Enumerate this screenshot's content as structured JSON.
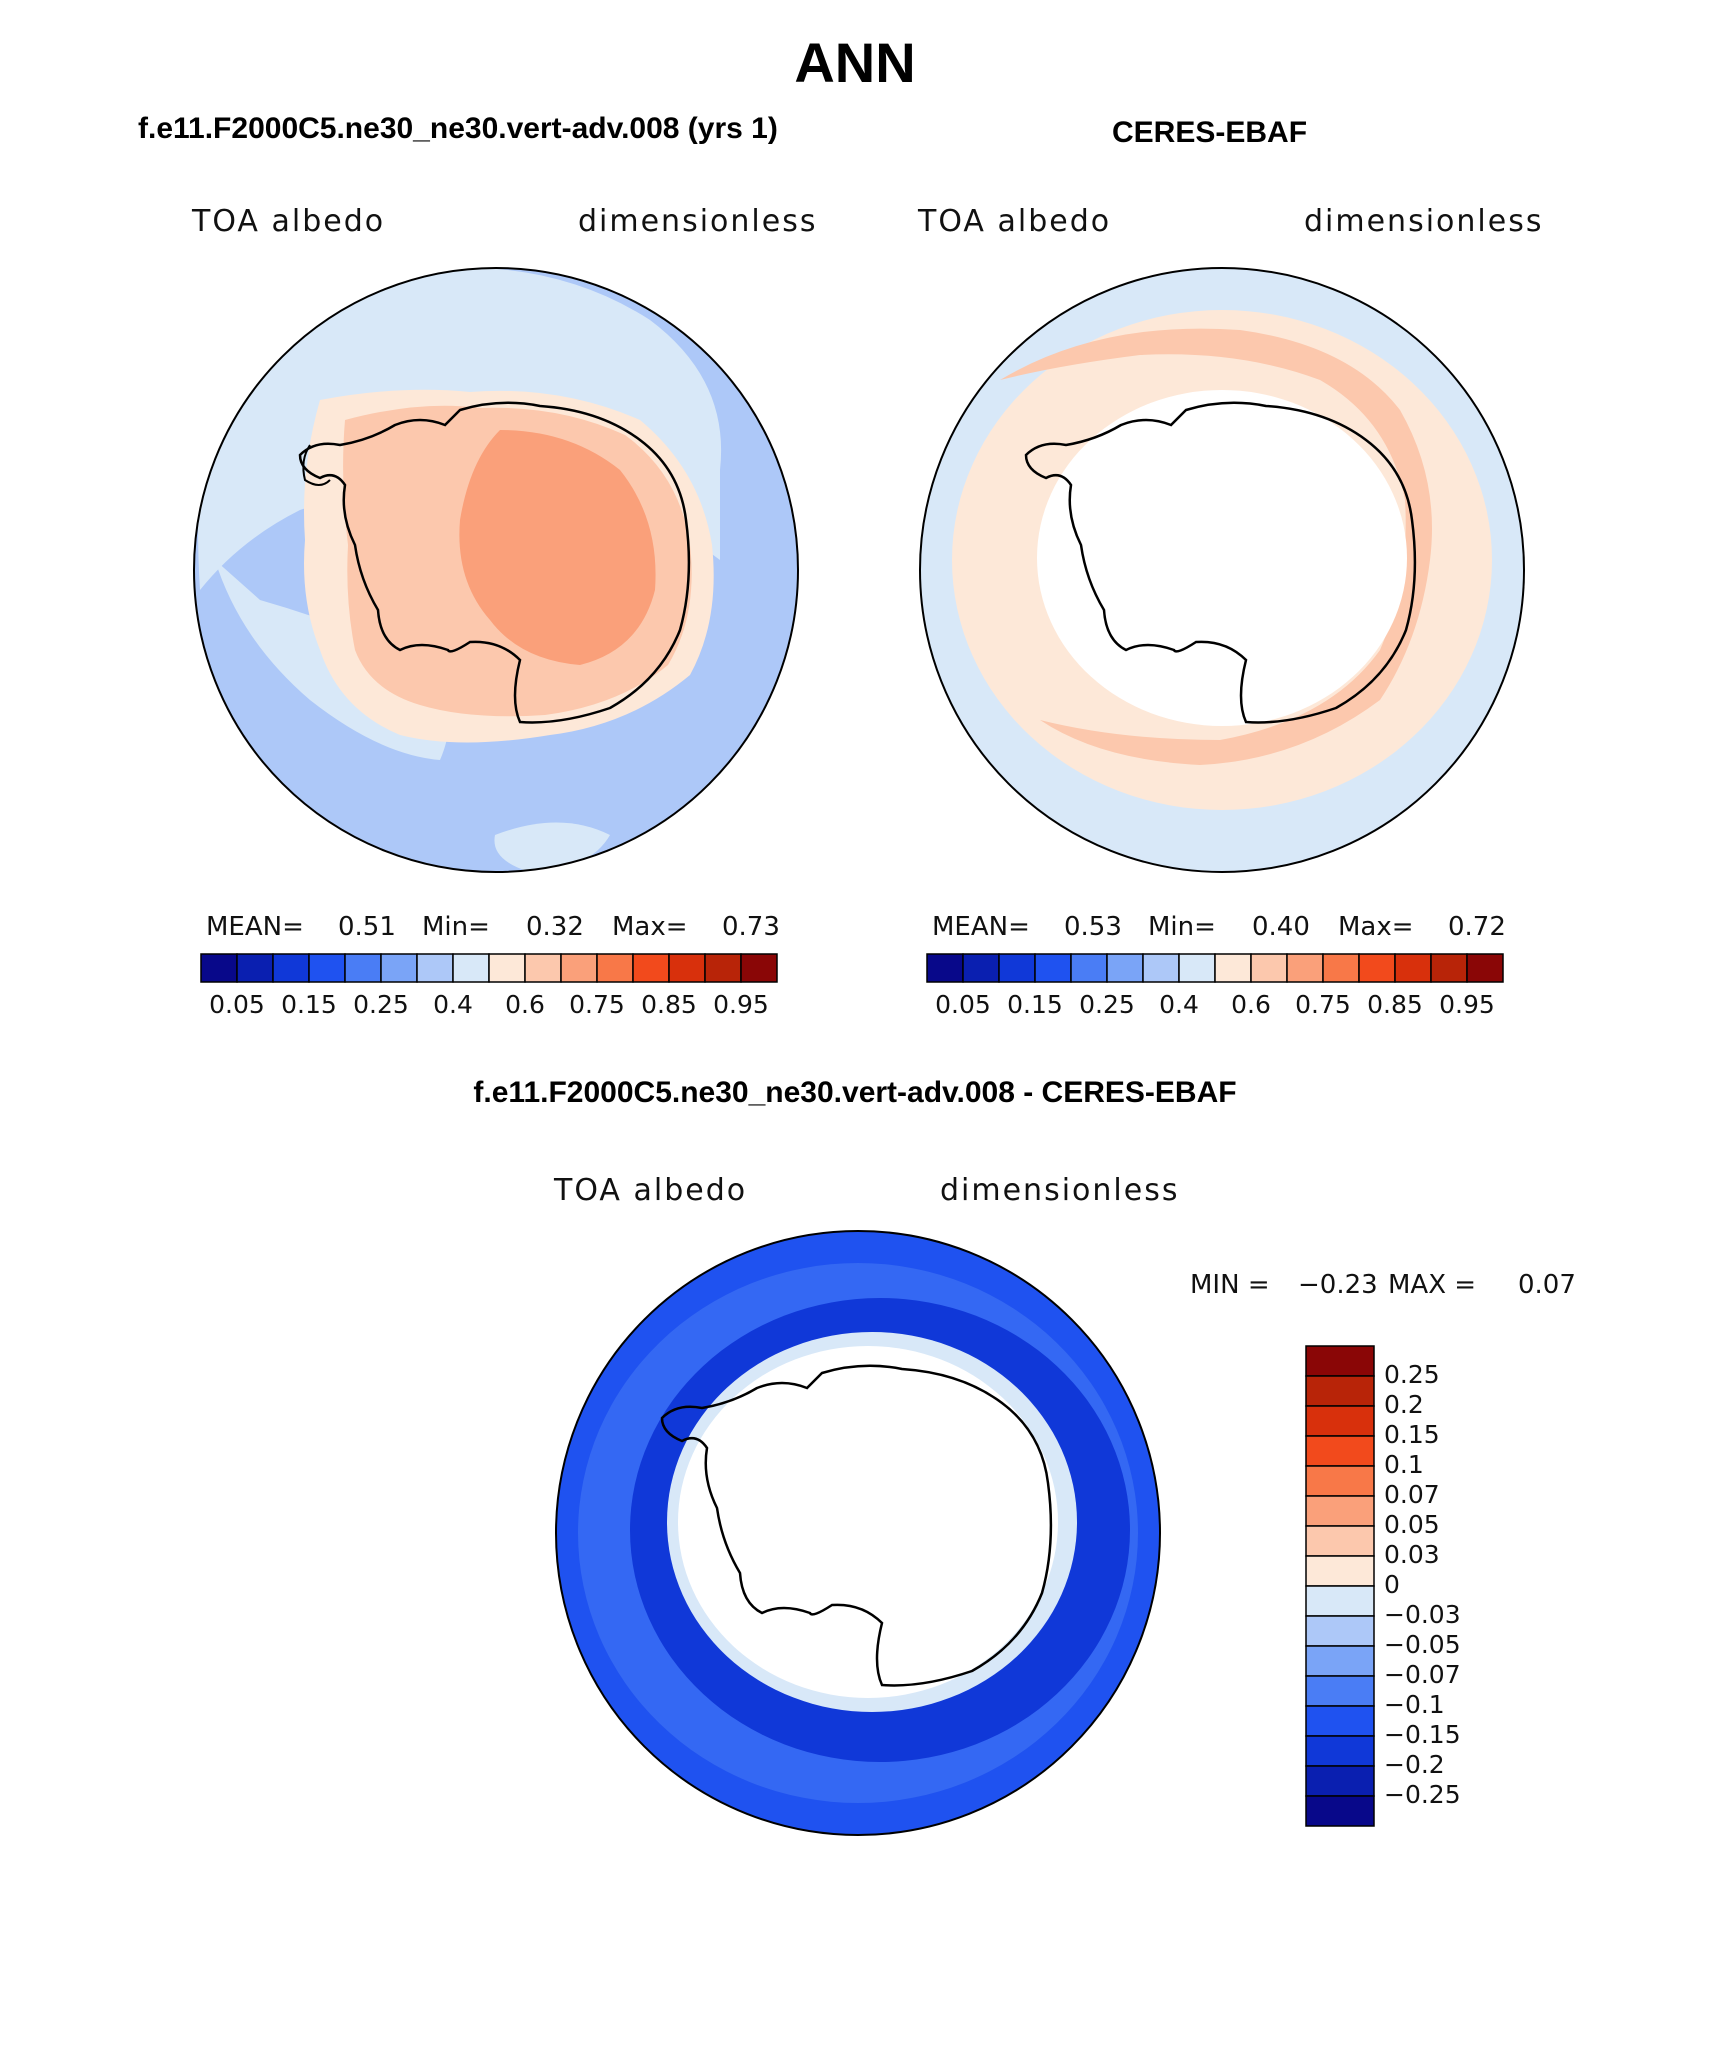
{
  "figure": {
    "title": "ANN"
  },
  "panels": {
    "model": {
      "title": "f.e11.F2000C5.ne30_ne30.vert-adv.008 (yrs 1)",
      "variable": "TOA albedo",
      "units": "dimensionless",
      "stats": {
        "mean_label": "MEAN=",
        "mean": "0.51",
        "min_label": "Min=",
        "min": "0.32",
        "max_label": "Max=",
        "max": "0.73"
      }
    },
    "obs": {
      "title": "CERES-EBAF",
      "variable": "TOA albedo",
      "units": "dimensionless",
      "stats": {
        "mean_label": "MEAN=",
        "mean": "0.53",
        "min_label": "Min=",
        "min": "0.40",
        "max_label": "Max=",
        "max": "0.72"
      }
    },
    "diff": {
      "title": "f.e11.F2000C5.ne30_ne30.vert-adv.008 - CERES-EBAF",
      "variable": "TOA albedo",
      "units": "dimensionless",
      "stats": {
        "min_label": "MIN =",
        "min": "−0.23",
        "max_label": "MAX =",
        "max": "0.07"
      }
    }
  },
  "colorbar_abs": {
    "colors": [
      "#08088a",
      "#0a1fb0",
      "#1038d8",
      "#1f52f0",
      "#4a7df5",
      "#7aa4f7",
      "#adc8f8",
      "#d8e8f8",
      "#fde8d8",
      "#fcc8ad",
      "#faa07a",
      "#f87848",
      "#f24a1c",
      "#d8300c",
      "#b82408",
      "#8a0606"
    ],
    "labels": [
      "0.05",
      "0.15",
      "0.25",
      "0.4",
      "0.6",
      "0.75",
      "0.85",
      "0.95"
    ]
  },
  "colorbar_diff": {
    "colors": [
      "#8a0606",
      "#b82408",
      "#d8300c",
      "#f24a1c",
      "#f87848",
      "#faa07a",
      "#fcc8ad",
      "#fde8d8",
      "#d8e8f8",
      "#adc8f8",
      "#7aa4f7",
      "#4a7df5",
      "#1f52f0",
      "#1038d8",
      "#0a1fb0",
      "#08088a"
    ],
    "labels": [
      "0.25",
      "0.2",
      "0.15",
      "0.1",
      "0.07",
      "0.05",
      "0.03",
      "0",
      "−0.03",
      "−0.05",
      "−0.07",
      "−0.1",
      "−0.15",
      "−0.2",
      "−0.25"
    ]
  },
  "map_colors": {
    "ocean_light": "#d8e8f8",
    "ocean_mid": "#adc8f8",
    "ice_light": "#fcc8ad",
    "ice_dark": "#faa07a",
    "ring_light": "#fde8d8",
    "diff_blue": "#1f52f0",
    "diff_dark": "#1038d8",
    "diff_lighter": "#4a7df5",
    "missing": "#ffffff"
  }
}
